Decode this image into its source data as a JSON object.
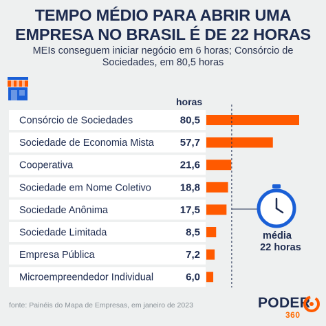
{
  "header": {
    "title_line1": "TEMPO MÉDIO PARA ABRIR UMA",
    "title_line2": "EMPRESA NO BRASIL É DE 22 HORAS",
    "subtitle_line1": "MEIs conseguem iniciar negócio em 6 horas; Consórcio de",
    "subtitle_line2": "Sociedades, em 80,5 horas"
  },
  "chart_data": {
    "type": "bar",
    "orientation": "horizontal",
    "unit_label": "horas",
    "categories": [
      "Consórcio de Sociedades",
      "Sociedade de Economia Mista",
      "Cooperativa",
      "Sociedade em Nome Coletivo",
      "Sociedade Anônima",
      "Sociedade Limitada",
      "Empresa Pública",
      "Microempreendedor Individual"
    ],
    "values": [
      80.5,
      57.7,
      21.6,
      18.8,
      17.5,
      8.5,
      7.2,
      6.0
    ],
    "value_labels": [
      "80,5",
      "57,7",
      "21,6",
      "18,8",
      "17,5",
      "8,5",
      "7,2",
      "6,0"
    ],
    "reference_line": {
      "value": 22,
      "label_line1": "média",
      "label_line2": "22 horas"
    },
    "colors": {
      "bar": "#ff5a00",
      "accent": "#1a5fd6",
      "text": "#1d2b4f"
    }
  },
  "footer": {
    "source": "fonte: Painéis do Mapa de Empresas, em janeiro de 2023",
    "brand": "PODER",
    "brand_number": "360"
  },
  "icons": [
    "storefront-icon",
    "clock-icon",
    "brand-logo-icon"
  ]
}
